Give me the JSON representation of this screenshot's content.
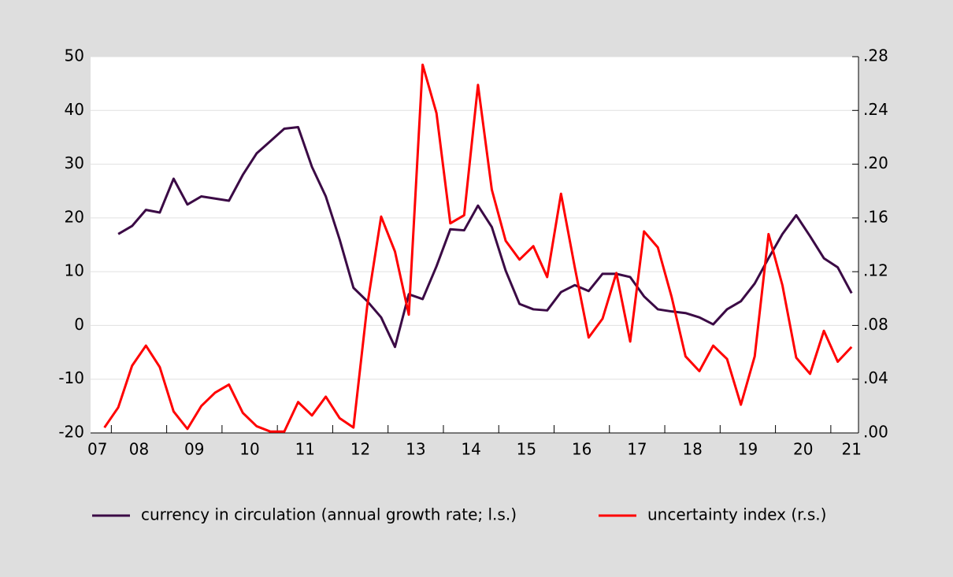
{
  "chart_data": {
    "type": "line",
    "x": [
      2007.875,
      2008.125,
      2008.375,
      2008.625,
      2008.875,
      2009.125,
      2009.375,
      2009.625,
      2009.875,
      2010.125,
      2010.375,
      2010.625,
      2010.875,
      2011.125,
      2011.375,
      2011.625,
      2011.875,
      2012.125,
      2012.375,
      2012.625,
      2012.875,
      2013.125,
      2013.375,
      2013.625,
      2013.875,
      2014.125,
      2014.375,
      2014.625,
      2014.875,
      2015.125,
      2015.375,
      2015.625,
      2015.875,
      2016.125,
      2016.375,
      2016.625,
      2016.875,
      2017.125,
      2017.375,
      2017.625,
      2017.875,
      2018.125,
      2018.375,
      2018.625,
      2018.875,
      2019.125,
      2019.375,
      2019.625,
      2019.875,
      2020.125,
      2020.375,
      2020.625,
      2020.875,
      2021.125,
      2021.375
    ],
    "series": [
      {
        "name": "currency in circulation (annual growth rate; l.s.)",
        "color": "#3b0a45",
        "axis": "y",
        "values": [
          null,
          17,
          18.5,
          21.5,
          21,
          27.3,
          22.5,
          24,
          23.6,
          23.2,
          28,
          32,
          34.3,
          36.6,
          36.9,
          29.5,
          24,
          16,
          7,
          4.5,
          1.5,
          -4,
          5.8,
          4.9,
          11,
          17.9,
          17.7,
          22.3,
          18.3,
          10.2,
          4,
          3,
          2.8,
          6.2,
          7.5,
          6.4,
          9.6,
          9.6,
          9,
          5.4,
          3,
          2.6,
          2.3,
          1.5,
          0.2,
          3,
          4.5,
          7.8,
          12.5,
          17,
          20.5,
          16.6,
          12.5,
          10.8,
          6
        ]
      },
      {
        "name": "uncertainty index (r.s.)",
        "color": "#ff0000",
        "axis": "y2",
        "values": [
          0.004,
          0.019,
          0.05,
          0.065,
          0.049,
          0.016,
          0.003,
          0.02,
          0.03,
          0.036,
          0.015,
          0.005,
          0.001,
          0.001,
          0.023,
          0.013,
          0.027,
          0.011,
          0.004,
          0.095,
          0.161,
          0.135,
          0.088,
          0.274,
          0.238,
          0.156,
          0.162,
          0.259,
          0.181,
          0.143,
          0.129,
          0.139,
          0.116,
          0.178,
          0.123,
          0.071,
          0.085,
          0.119,
          0.068,
          0.15,
          0.138,
          0.101,
          0.057,
          0.046,
          0.065,
          0.055,
          0.021,
          0.057,
          0.148,
          0.11,
          0.056,
          0.044,
          0.076,
          0.053,
          0.064
        ]
      }
    ],
    "xlim": [
      2007.625,
      2021.5
    ],
    "xticks": [
      {
        "value": 2007.75,
        "label": "07"
      },
      {
        "value": 2008.5,
        "label": "08"
      },
      {
        "value": 2009.5,
        "label": "09"
      },
      {
        "value": 2010.5,
        "label": "10"
      },
      {
        "value": 2011.5,
        "label": "11"
      },
      {
        "value": 2012.5,
        "label": "12"
      },
      {
        "value": 2013.5,
        "label": "13"
      },
      {
        "value": 2014.5,
        "label": "14"
      },
      {
        "value": 2015.5,
        "label": "15"
      },
      {
        "value": 2016.5,
        "label": "16"
      },
      {
        "value": 2017.5,
        "label": "17"
      },
      {
        "value": 2018.5,
        "label": "18"
      },
      {
        "value": 2019.5,
        "label": "19"
      },
      {
        "value": 2020.5,
        "label": "20"
      },
      {
        "value": 2021.375,
        "label": "21"
      }
    ],
    "ylim": [
      -20,
      50
    ],
    "yticks": [
      -20,
      -10,
      0,
      10,
      20,
      30,
      40,
      50
    ],
    "y2lim": [
      0,
      0.28
    ],
    "y2ticks": [
      {
        "value": 0,
        "label": ".00"
      },
      {
        "value": 0.04,
        "label": ".04"
      },
      {
        "value": 0.08,
        "label": ".08"
      },
      {
        "value": 0.12,
        "label": ".12"
      },
      {
        "value": 0.16,
        "label": ".16"
      },
      {
        "value": 0.2,
        "label": ".20"
      },
      {
        "value": 0.24,
        "label": ".24"
      },
      {
        "value": 0.28,
        "label": ".28"
      }
    ],
    "grid": true,
    "legend": "bottom"
  }
}
